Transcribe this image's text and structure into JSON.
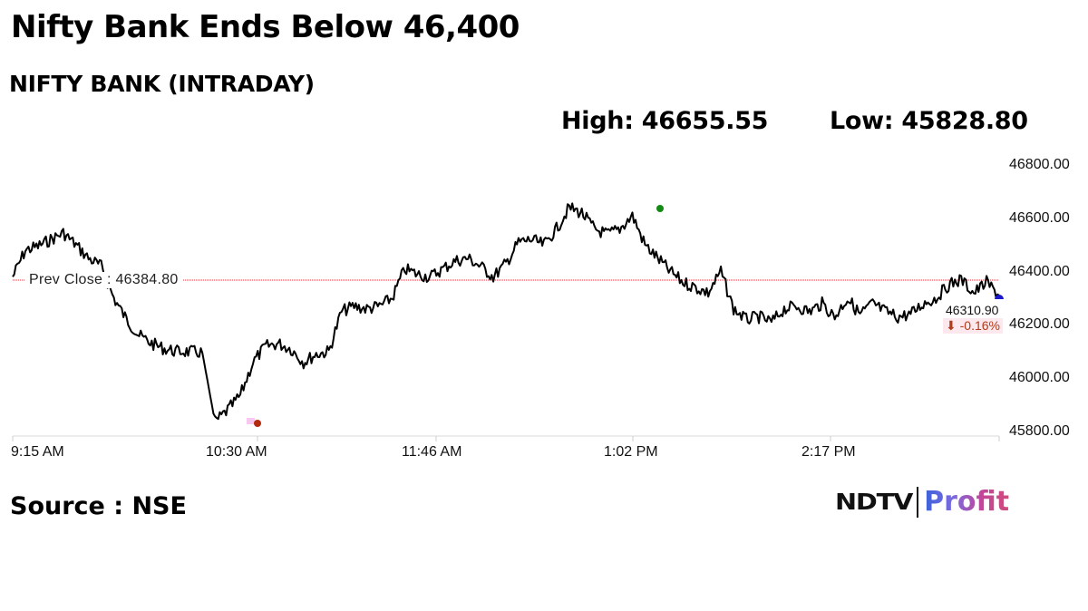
{
  "headline": "Nifty Bank Ends Below 46,400",
  "subtitle": "NIFTY BANK (INTRADAY)",
  "stats": {
    "high": "High: 46655.55",
    "low": "Low: 45828.80"
  },
  "prev_close_label": "Prev Close : 46384.80",
  "last": {
    "price": "46310.90",
    "change": "⬇ -0.16%"
  },
  "source": "Source : NSE",
  "logo": {
    "left": "NDTV",
    "right": "Profit"
  },
  "colors": {
    "line": "#000000",
    "prev_close": "#e0303a",
    "high_marker": "#138a13",
    "low_marker": "#b32a0e",
    "last_marker": "#1a1acc",
    "change_text": "#b23a1a"
  },
  "chart_data": {
    "type": "line",
    "title": "NIFTY BANK (INTRADAY)",
    "xlabel": "",
    "ylabel": "",
    "x_ticks": [
      "9:15 AM",
      "10:30 AM",
      "11:46 AM",
      "1:02 PM",
      "2:17 PM"
    ],
    "y_ticks": [
      "46800.00",
      "46600.00",
      "46400.00",
      "46200.00",
      "46000.00",
      "45800.00"
    ],
    "ylim": [
      45800,
      46800
    ],
    "grid": false,
    "prev_close": 46384.8,
    "high": 46655.55,
    "low": 45828.8,
    "last": 46310.9,
    "change_pct": -0.16,
    "series": [
      {
        "name": "NIFTY BANK",
        "x": [
          "9:15",
          "9:20",
          "9:25",
          "9:30",
          "9:35",
          "9:40",
          "9:45",
          "9:50",
          "9:55",
          "10:00",
          "10:05",
          "10:10",
          "10:15",
          "10:20",
          "10:25",
          "10:28",
          "10:30",
          "10:35",
          "10:40",
          "10:45",
          "10:50",
          "10:55",
          "11:00",
          "11:05",
          "11:10",
          "11:15",
          "11:20",
          "11:25",
          "11:30",
          "11:35",
          "11:40",
          "11:46",
          "11:50",
          "11:55",
          "12:00",
          "12:05",
          "12:10",
          "12:15",
          "12:20",
          "12:25",
          "12:30",
          "12:35",
          "12:40",
          "12:45",
          "12:50",
          "12:55",
          "1:00",
          "1:02",
          "1:05",
          "1:10",
          "1:15",
          "1:20",
          "1:25",
          "1:30",
          "1:35",
          "1:40",
          "1:45",
          "1:50",
          "1:55",
          "2:00",
          "2:05",
          "2:10",
          "2:15",
          "2:17",
          "2:20",
          "2:25",
          "2:30",
          "2:35",
          "2:40",
          "2:45",
          "2:50",
          "2:55",
          "3:00",
          "3:05",
          "3:10",
          "3:15",
          "3:20",
          "3:25",
          "3:29"
        ],
        "values": [
          46380,
          46480,
          46495,
          46520,
          46545,
          46500,
          46450,
          46420,
          46300,
          46220,
          46160,
          46130,
          46110,
          46100,
          46100,
          46095,
          45835,
          45880,
          45935,
          46060,
          46120,
          46130,
          46110,
          46060,
          46090,
          46100,
          46250,
          46270,
          46260,
          46270,
          46300,
          46410,
          46390,
          46380,
          46410,
          46440,
          46450,
          46420,
          46380,
          46430,
          46510,
          46520,
          46500,
          46560,
          46640,
          46620,
          46560,
          46540,
          46560,
          46610,
          46500,
          46450,
          46400,
          46360,
          46340,
          46320,
          46400,
          46260,
          46220,
          46230,
          46210,
          46260,
          46270,
          46250,
          46280,
          46230,
          46300,
          46240,
          46280,
          46250,
          46230,
          46240,
          46280,
          46300,
          46350,
          46370,
          46320,
          46360,
          46310.9
        ]
      }
    ]
  }
}
